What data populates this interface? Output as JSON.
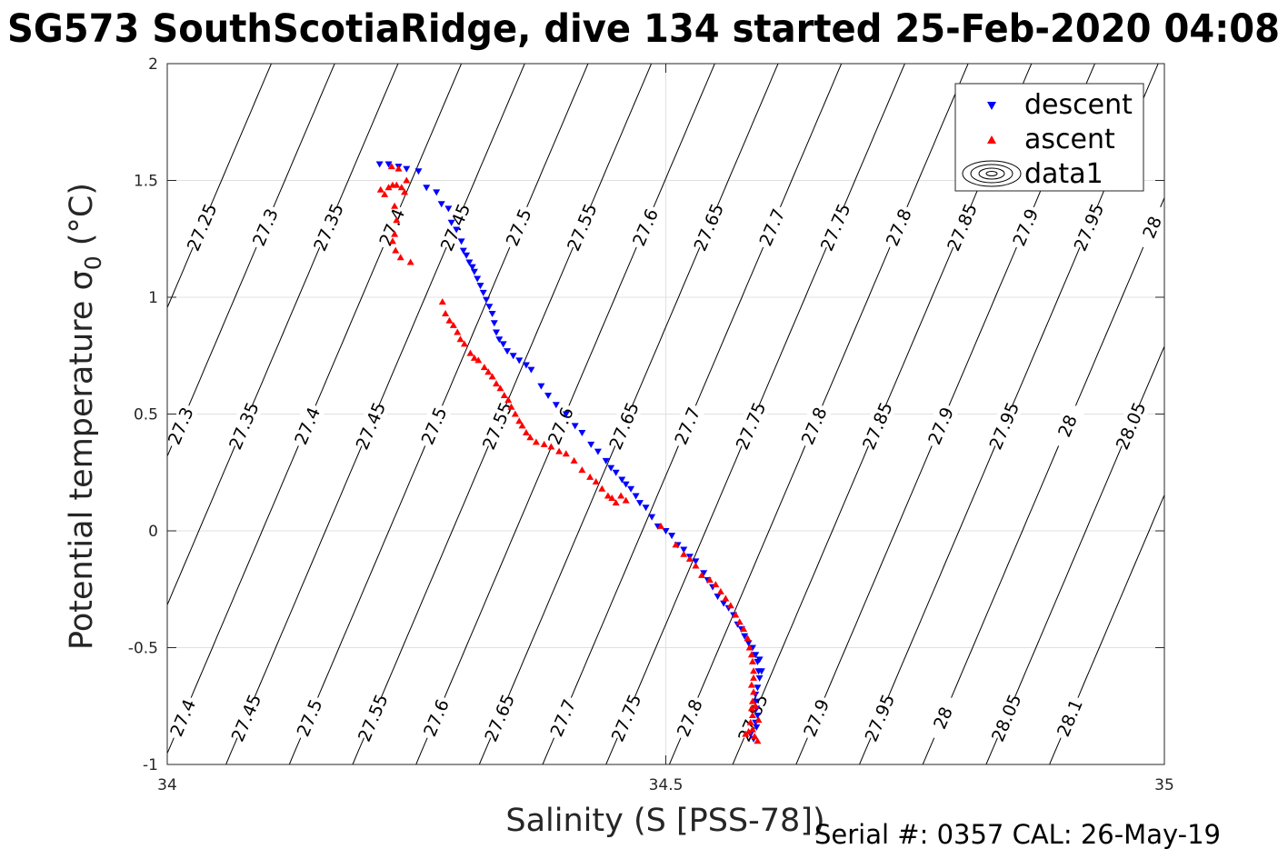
{
  "title": "SG573 SouthScotiaRidge, dive 134 started 25-Feb-2020 04:08",
  "footer": "Serial #: 0357  CAL: 26-May-19",
  "colors": {
    "descent": "#0000ff",
    "ascent": "#ff0000",
    "grid": "#e0e0e0",
    "axis": "#262626"
  },
  "chart_data": {
    "type": "scatter",
    "xlabel": "Salinity (S [PSS-78])",
    "ylabel": "Potential temperature σ",
    "ylabel_subscript": "0",
    "ylabel_unit": " (°C)",
    "xlim": [
      34,
      35
    ],
    "ylim": [
      -1,
      2
    ],
    "xticks": [
      34,
      34.5,
      35
    ],
    "xtick_labels": [
      "34",
      "34.5",
      "35"
    ],
    "yticks": [
      -1,
      -0.5,
      0,
      0.5,
      1,
      1.5,
      2
    ],
    "ytick_labels": [
      "-1",
      "-0.5",
      "0",
      "0.5",
      "1",
      "1.5",
      "2"
    ],
    "grid": true,
    "legend": {
      "location": "top-right",
      "entries": [
        {
          "name": "descent",
          "marker": "triangle-down",
          "color": "#0000ff"
        },
        {
          "name": "ascent",
          "marker": "triangle-up",
          "color": "#ff0000"
        },
        {
          "name": "data1",
          "marker": "contour",
          "color": "#000000"
        }
      ]
    },
    "isopycnals": [
      {
        "label": "27.25",
        "sigma": 27.25
      },
      {
        "label": "27.3",
        "sigma": 27.3
      },
      {
        "label": "27.35",
        "sigma": 27.35
      },
      {
        "label": "27.4",
        "sigma": 27.4
      },
      {
        "label": "27.45",
        "sigma": 27.45
      },
      {
        "label": "27.5",
        "sigma": 27.5
      },
      {
        "label": "27.55",
        "sigma": 27.55
      },
      {
        "label": "27.6",
        "sigma": 27.6
      },
      {
        "label": "27.65",
        "sigma": 27.65
      },
      {
        "label": "27.7",
        "sigma": 27.7
      },
      {
        "label": "27.75",
        "sigma": 27.75
      },
      {
        "label": "27.8",
        "sigma": 27.8
      },
      {
        "label": "27.85",
        "sigma": 27.85
      },
      {
        "label": "27.9",
        "sigma": 27.9
      },
      {
        "label": "27.95",
        "sigma": 27.95
      },
      {
        "label": "28",
        "sigma": 28.0
      },
      {
        "label": "28.05",
        "sigma": 28.05
      },
      {
        "label": "28.1",
        "sigma": 28.1
      }
    ],
    "series": [
      {
        "name": "descent",
        "points": [
          [
            34.213,
            1.57
          ],
          [
            34.222,
            1.57
          ],
          [
            34.232,
            1.56
          ],
          [
            34.24,
            1.55
          ],
          [
            34.252,
            1.54
          ],
          [
            34.26,
            1.47
          ],
          [
            34.27,
            1.45
          ],
          [
            34.275,
            1.4
          ],
          [
            34.282,
            1.38
          ],
          [
            34.285,
            1.32
          ],
          [
            34.29,
            1.29
          ],
          [
            34.295,
            1.24
          ],
          [
            34.297,
            1.2
          ],
          [
            34.3,
            1.18
          ],
          [
            34.303,
            1.15
          ],
          [
            34.306,
            1.13
          ],
          [
            34.308,
            1.11
          ],
          [
            34.311,
            1.08
          ],
          [
            34.314,
            1.05
          ],
          [
            34.317,
            1.02
          ],
          [
            34.32,
            0.99
          ],
          [
            34.323,
            0.96
          ],
          [
            34.326,
            0.93
          ],
          [
            34.328,
            0.89
          ],
          [
            34.33,
            0.85
          ],
          [
            34.333,
            0.82
          ],
          [
            34.337,
            0.8
          ],
          [
            34.341,
            0.77
          ],
          [
            34.347,
            0.75
          ],
          [
            34.353,
            0.73
          ],
          [
            34.36,
            0.71
          ],
          [
            34.365,
            0.69
          ],
          [
            34.375,
            0.62
          ],
          [
            34.382,
            0.58
          ],
          [
            34.39,
            0.54
          ],
          [
            34.4,
            0.5
          ],
          [
            34.409,
            0.45
          ],
          [
            34.416,
            0.42
          ],
          [
            34.425,
            0.37
          ],
          [
            34.432,
            0.34
          ],
          [
            34.44,
            0.3
          ],
          [
            34.445,
            0.27
          ],
          [
            34.45,
            0.25
          ],
          [
            34.456,
            0.22
          ],
          [
            34.46,
            0.2
          ],
          [
            34.465,
            0.18
          ],
          [
            34.47,
            0.15
          ],
          [
            34.474,
            0.12
          ],
          [
            34.48,
            0.1
          ],
          [
            34.486,
            0.06
          ],
          [
            34.492,
            0.02
          ],
          [
            34.5,
            0.0
          ],
          [
            34.506,
            -0.02
          ],
          [
            34.512,
            -0.06
          ],
          [
            34.518,
            -0.08
          ],
          [
            34.524,
            -0.11
          ],
          [
            34.53,
            -0.13
          ],
          [
            34.538,
            -0.18
          ],
          [
            34.542,
            -0.21
          ],
          [
            34.547,
            -0.24
          ],
          [
            34.552,
            -0.28
          ],
          [
            34.558,
            -0.31
          ],
          [
            34.563,
            -0.33
          ],
          [
            34.568,
            -0.36
          ],
          [
            34.572,
            -0.4
          ],
          [
            34.576,
            -0.42
          ],
          [
            34.579,
            -0.45
          ],
          [
            34.583,
            -0.48
          ],
          [
            34.587,
            -0.5
          ],
          [
            34.59,
            -0.53
          ],
          [
            34.592,
            -0.56
          ],
          [
            34.593,
            -0.6
          ],
          [
            34.594,
            -0.63
          ],
          [
            34.592,
            -0.67
          ],
          [
            34.59,
            -0.7
          ],
          [
            34.59,
            -0.73
          ],
          [
            34.591,
            -0.76
          ],
          [
            34.592,
            -0.79
          ],
          [
            34.59,
            -0.82
          ],
          [
            34.591,
            -0.84
          ],
          [
            34.585,
            -0.87
          ],
          [
            34.588,
            -0.89
          ],
          [
            34.594,
            -0.55
          ],
          [
            34.596,
            -0.6
          ]
        ]
      },
      {
        "name": "ascent",
        "points": [
          [
            34.214,
            1.46
          ],
          [
            34.218,
            1.44
          ],
          [
            34.222,
            1.47
          ],
          [
            34.226,
            1.48
          ],
          [
            34.23,
            1.48
          ],
          [
            34.235,
            1.47
          ],
          [
            34.238,
            1.45
          ],
          [
            34.225,
            1.56
          ],
          [
            34.232,
            1.55
          ],
          [
            34.24,
            1.5
          ],
          [
            34.228,
            1.39
          ],
          [
            34.23,
            1.33
          ],
          [
            34.228,
            1.27
          ],
          [
            34.226,
            1.24
          ],
          [
            34.229,
            1.2
          ],
          [
            34.234,
            1.17
          ],
          [
            34.244,
            1.15
          ],
          [
            34.276,
            0.98
          ],
          [
            34.279,
            0.93
          ],
          [
            34.283,
            0.9
          ],
          [
            34.287,
            0.88
          ],
          [
            34.291,
            0.85
          ],
          [
            34.294,
            0.82
          ],
          [
            34.298,
            0.8
          ],
          [
            34.304,
            0.76
          ],
          [
            34.308,
            0.74
          ],
          [
            34.312,
            0.73
          ],
          [
            34.318,
            0.7
          ],
          [
            34.322,
            0.68
          ],
          [
            34.326,
            0.66
          ],
          [
            34.33,
            0.63
          ],
          [
            34.334,
            0.61
          ],
          [
            34.338,
            0.58
          ],
          [
            34.342,
            0.56
          ],
          [
            34.345,
            0.53
          ],
          [
            34.349,
            0.5
          ],
          [
            34.353,
            0.47
          ],
          [
            34.356,
            0.45
          ],
          [
            34.36,
            0.42
          ],
          [
            34.364,
            0.4
          ],
          [
            34.37,
            0.38
          ],
          [
            34.378,
            0.37
          ],
          [
            34.385,
            0.36
          ],
          [
            34.393,
            0.34
          ],
          [
            34.4,
            0.33
          ],
          [
            34.408,
            0.3
          ],
          [
            34.416,
            0.26
          ],
          [
            34.424,
            0.23
          ],
          [
            34.43,
            0.21
          ],
          [
            34.436,
            0.18
          ],
          [
            34.442,
            0.15
          ],
          [
            34.446,
            0.14
          ],
          [
            34.45,
            0.12
          ],
          [
            34.455,
            0.15
          ],
          [
            34.46,
            0.13
          ],
          [
            34.495,
            0.02
          ],
          [
            34.51,
            -0.06
          ],
          [
            34.518,
            -0.1
          ],
          [
            34.524,
            -0.12
          ],
          [
            34.53,
            -0.15
          ],
          [
            34.536,
            -0.19
          ],
          [
            34.544,
            -0.21
          ],
          [
            34.55,
            -0.23
          ],
          [
            34.555,
            -0.26
          ],
          [
            34.56,
            -0.29
          ],
          [
            34.565,
            -0.32
          ],
          [
            34.57,
            -0.36
          ],
          [
            34.574,
            -0.39
          ],
          [
            34.578,
            -0.42
          ],
          [
            34.582,
            -0.46
          ],
          [
            34.584,
            -0.5
          ],
          [
            34.586,
            -0.53
          ],
          [
            34.587,
            -0.56
          ],
          [
            34.588,
            -0.6
          ],
          [
            34.588,
            -0.63
          ],
          [
            34.586,
            -0.66
          ],
          [
            34.588,
            -0.69
          ],
          [
            34.587,
            -0.73
          ],
          [
            34.586,
            -0.76
          ],
          [
            34.587,
            -0.79
          ],
          [
            34.585,
            -0.82
          ],
          [
            34.587,
            -0.85
          ],
          [
            34.589,
            -0.88
          ],
          [
            34.583,
            -0.86
          ],
          [
            34.59,
            -0.75
          ],
          [
            34.593,
            -0.81
          ],
          [
            34.592,
            -0.9
          ],
          [
            34.58,
            -0.87
          ]
        ]
      }
    ]
  }
}
